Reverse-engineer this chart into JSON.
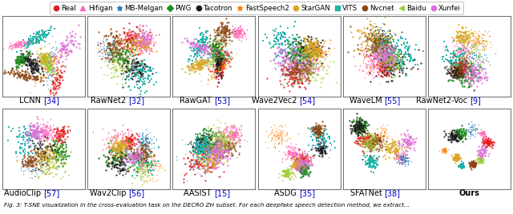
{
  "legend_entries": [
    {
      "label": "Real",
      "color": "#e31a1c",
      "marker": "o"
    },
    {
      "label": "Hifigan",
      "color": "#ff69b4",
      "marker": "^"
    },
    {
      "label": "MB-Melgan",
      "color": "#1f78b4",
      "marker": "*"
    },
    {
      "label": "PWG",
      "color": "#228b22",
      "marker": "D"
    },
    {
      "label": "Tacotron",
      "color": "#1a1a1a",
      "marker": "o"
    },
    {
      "label": "FastSpeech2",
      "color": "#ff7f00",
      "marker": "*"
    },
    {
      "label": "StarGAN",
      "color": "#daa520",
      "marker": "o"
    },
    {
      "label": "VITS",
      "color": "#20b2aa",
      "marker": "s"
    },
    {
      "label": "Nvcnet",
      "color": "#8b4513",
      "marker": "o"
    },
    {
      "label": "Baidu",
      "color": "#9acd32",
      "marker": "<"
    },
    {
      "label": "Xunfei",
      "color": "#da70d6",
      "marker": "o"
    }
  ],
  "row1_methods": [
    {
      "name": "LCNN",
      "ref": "34"
    },
    {
      "name": "RawNet2",
      "ref": "32"
    },
    {
      "name": "RawGAT",
      "ref": "53"
    },
    {
      "name": "Wave2Vec2",
      "ref": "54"
    },
    {
      "name": "WaveLM",
      "ref": "55"
    },
    {
      "name": "RawNet2-Voc",
      "ref": "9"
    }
  ],
  "row2_methods": [
    {
      "name": "AudioClip",
      "ref": "57"
    },
    {
      "name": "Wav2Clip",
      "ref": "56"
    },
    {
      "name": "AASIST",
      "ref": "15"
    },
    {
      "name": "ASDG",
      "ref": "35"
    },
    {
      "name": "SFATNet",
      "ref": "38"
    },
    {
      "name": "Ours",
      "ref": ""
    }
  ],
  "ref_color": "#0000cc",
  "background_color": "#ffffff",
  "label_fontsize": 7.0,
  "legend_fontsize": 6.2,
  "caption": "Fig. 3: T-SNE visualization in the cross-evaluation task on the DECRO ZH subset. For each deepfake speech detection method, we extract..."
}
